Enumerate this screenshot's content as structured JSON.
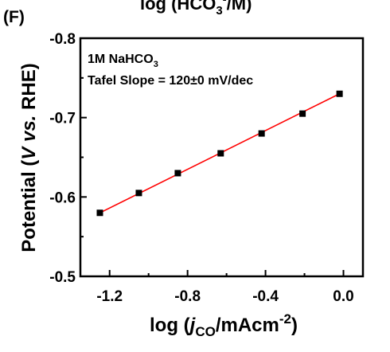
{
  "panel_label": "(F)",
  "top_cut_text": {
    "main": "log (HCO",
    "sub": "3",
    "sup": "-",
    "tail": "/M)"
  },
  "chart_data": {
    "type": "scatter",
    "xlabel": {
      "pre": "log (",
      "italic": "j",
      "sub": "CO",
      "mid": "/mAcm",
      "sup": "-2",
      "post": ")"
    },
    "ylabel": {
      "pre": "Potential (",
      "italic": "V vs.",
      "post": " RHE)"
    },
    "xlim": [
      -1.35,
      0.1
    ],
    "ylim": [
      -0.8,
      -0.5
    ],
    "y_reversed": true,
    "xticks": [
      -1.2,
      -0.8,
      -0.4,
      0.0
    ],
    "xtick_labels": [
      "-1.2",
      "-0.8",
      "-0.4",
      "0.0"
    ],
    "yticks": [
      -0.8,
      -0.7,
      -0.6,
      -0.5
    ],
    "ytick_labels": [
      "-0.8",
      "-0.7",
      "-0.6",
      "-0.5"
    ],
    "series": [
      {
        "marker": "square",
        "color": "#000000",
        "x": [
          -1.25,
          -1.05,
          -0.85,
          -0.63,
          -0.42,
          -0.21,
          -0.02
        ],
        "y": [
          -0.58,
          -0.605,
          -0.63,
          -0.655,
          -0.68,
          -0.705,
          -0.73
        ]
      }
    ],
    "fit_line": {
      "color": "#ff0000",
      "x": [
        -1.25,
        -0.02
      ],
      "y": [
        -0.58,
        -0.73
      ]
    },
    "annotations": {
      "line1": {
        "main": "1M NaHCO",
        "sub": "3"
      },
      "line2": "Tafel Slope = 120±0 mV/dec"
    },
    "grid": false
  }
}
